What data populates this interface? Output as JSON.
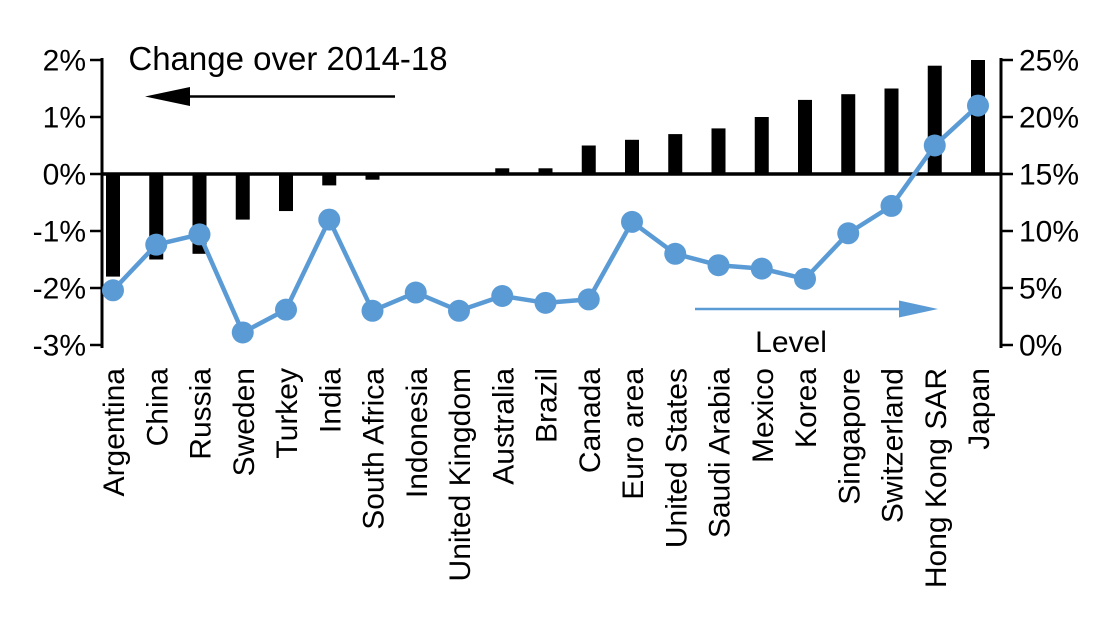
{
  "chart_data": {
    "type": "bar",
    "subtype": "bar-line-combo",
    "background": "#FFFFFF",
    "grid": false,
    "categories": [
      "Argentina",
      "China",
      "Russia",
      "Sweden",
      "Turkey",
      "India",
      "South Africa",
      "Indonesia",
      "United Kingdom",
      "Australia",
      "Brazil",
      "Canada",
      "Euro area",
      "United States",
      "Saudi Arabia",
      "Mexico",
      "Korea",
      "Singapore",
      "Switzerland",
      "Hong Kong SAR",
      "Japan"
    ],
    "series": [
      {
        "name": "Change over 2014-18",
        "type": "bar",
        "axis": "left",
        "color": "#000000",
        "values": [
          -1.8,
          -1.5,
          -1.4,
          -0.8,
          -0.65,
          -0.2,
          -0.1,
          0,
          0,
          0.1,
          0.1,
          0.5,
          0.6,
          0.7,
          0.8,
          1.0,
          1.3,
          1.4,
          1.5,
          1.9,
          2.0
        ]
      },
      {
        "name": "Level",
        "type": "line",
        "axis": "right",
        "color": "#5B9BD5",
        "values": [
          4.8,
          8.8,
          9.7,
          1.1,
          3.1,
          11.0,
          3.0,
          4.6,
          3.0,
          4.3,
          3.7,
          4.0,
          10.8,
          8.0,
          7.0,
          6.7,
          5.8,
          9.8,
          12.2,
          17.5,
          21.0
        ]
      }
    ],
    "left_axis": {
      "min": -3,
      "max": 2,
      "tick_labels": [
        "2%",
        "1%",
        "0%",
        "-1%",
        "-2%",
        "-3%"
      ]
    },
    "right_axis": {
      "min": 0,
      "max": 25,
      "tick_labels": [
        "25%",
        "20%",
        "15%",
        "10%",
        "5%",
        "0%"
      ]
    },
    "annotations": {
      "bar_series_label": {
        "text": "Change over 2014-18",
        "arrow_direction": "left",
        "color": "#000000"
      },
      "line_series_label": {
        "text": "Level",
        "arrow_direction": "right",
        "color": "#5B9BD5"
      }
    }
  }
}
